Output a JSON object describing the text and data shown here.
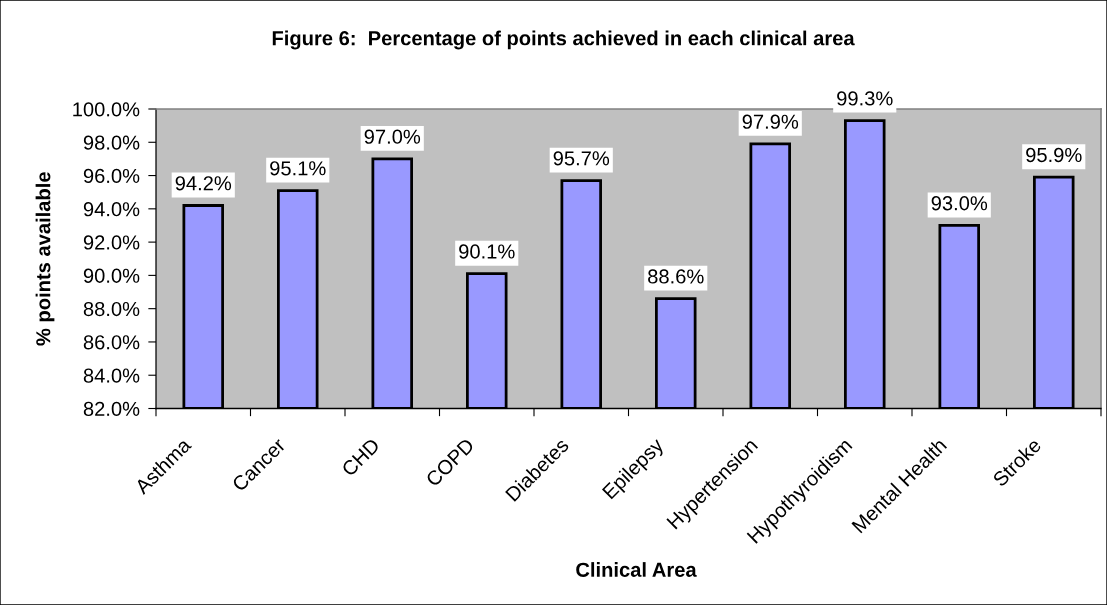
{
  "chart_data": {
    "type": "bar",
    "title": "Figure 6:  Percentage of points achieved in each clinical area",
    "xlabel": "Clinical Area",
    "ylabel": "% points available",
    "categories": [
      "Asthma",
      "Cancer",
      "CHD",
      "COPD",
      "Diabetes",
      "Epilepsy",
      "Hypertension",
      "Hypothyroidism",
      "Mental Health",
      "Stroke"
    ],
    "values": [
      94.2,
      95.1,
      97.0,
      90.1,
      95.7,
      88.6,
      97.9,
      99.3,
      93.0,
      95.9
    ],
    "color": "#9999ff",
    "value_labels": [
      "94.2%",
      "95.1%",
      "97.0%",
      "90.1%",
      "95.7%",
      "88.6%",
      "97.9%",
      "99.3%",
      "93.0%",
      "95.9%"
    ],
    "ylim": [
      82,
      100
    ],
    "yticks": [
      {
        "value": 82,
        "label": "82.0%"
      },
      {
        "value": 84,
        "label": "84.0%"
      },
      {
        "value": 86,
        "label": "86.0%"
      },
      {
        "value": 88,
        "label": "88.0%"
      },
      {
        "value": 90,
        "label": "90.0%"
      },
      {
        "value": 92,
        "label": "92.0%"
      },
      {
        "value": 94,
        "label": "94.0%"
      },
      {
        "value": 96,
        "label": "96.0%"
      },
      {
        "value": 98,
        "label": "98.0%"
      },
      {
        "value": 100,
        "label": "100.0%"
      }
    ]
  }
}
